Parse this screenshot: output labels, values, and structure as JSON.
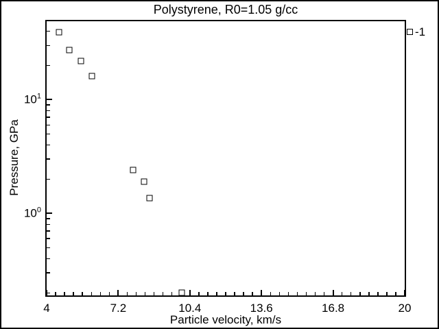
{
  "title": "Polystyrene, R0=1.05 g/cc",
  "legend": {
    "label": "-1",
    "marker": "open-square"
  },
  "colors": {
    "foreground": "#000000",
    "background": "#ffffff"
  },
  "chart_data": {
    "type": "scatter",
    "title": "Polystyrene, R0=1.05 g/cc",
    "xlabel": "Particle velocity, km/s",
    "ylabel": "Pressure, GPa",
    "x_scale": "linear",
    "y_scale": "log",
    "xlim": [
      4,
      20
    ],
    "ylim": [
      0.19,
      49
    ],
    "grid": false,
    "legend_position": "outside-top-right",
    "x_major_ticks": [
      {
        "value": 4,
        "label": "4"
      },
      {
        "value": 7.2,
        "label": "7.2"
      },
      {
        "value": 10.4,
        "label": "10.4"
      },
      {
        "value": 13.6,
        "label": "13.6"
      },
      {
        "value": 16.8,
        "label": "16.8"
      },
      {
        "value": 20,
        "label": "20"
      }
    ],
    "x_minor_step": 0.4,
    "y_major_ticks": [
      {
        "value": 10,
        "base": "10",
        "exp": "1"
      },
      {
        "value": 1,
        "base": "10",
        "exp": "0"
      }
    ],
    "y_minor_mantissas": [
      2,
      3,
      4,
      5,
      6,
      7,
      8,
      9
    ],
    "y_minor_decades": [
      -1,
      0,
      1
    ],
    "series": [
      {
        "name": "-1",
        "marker": "open-square",
        "points": [
          [
            4.54,
            39.5
          ],
          [
            5.01,
            27.5
          ],
          [
            5.52,
            22.0
          ],
          [
            6.01,
            16.2
          ],
          [
            7.87,
            2.4
          ],
          [
            8.34,
            1.9
          ],
          [
            8.59,
            1.36
          ],
          [
            10.05,
            0.2
          ]
        ]
      }
    ]
  }
}
